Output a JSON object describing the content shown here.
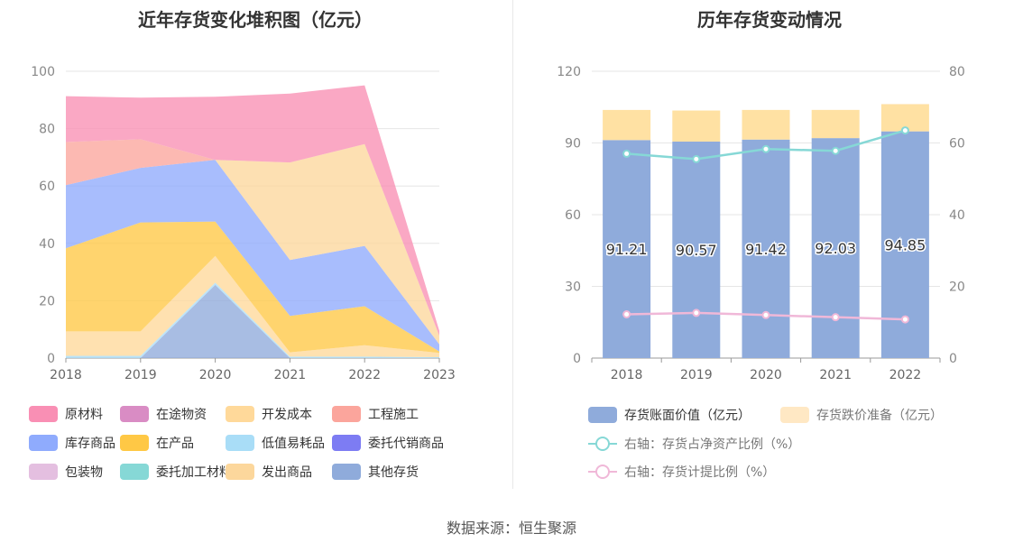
{
  "source": "数据来源：恒生聚源",
  "colors": {
    "原材料": "#f98fb4",
    "在途物资": "#d98cc4",
    "开发成本": "#ffd99a",
    "工程施工": "#fba59c",
    "库存商品": "#8fabfd",
    "在产品": "#ffc845",
    "低值易耗品": "#a9ddf7",
    "委托代销商品": "#7d7cf3",
    "包装物": "#e4bfe0",
    "委托加工材料": "#86d8d6",
    "发出商品": "#fcd79c",
    "其他存货": "#8fabdb",
    "bar_value": "#8fabdb",
    "bar_reserve": "#ffe1a3",
    "line_ratio": "#86d8d6",
    "line_provision": "#f0b8d8"
  },
  "chart_data": [
    {
      "type": "area",
      "title": "近年存货变化堆积图（亿元）",
      "x": [
        "2018",
        "2019",
        "2020",
        "2021",
        "2022",
        "2023"
      ],
      "ylim": [
        0,
        100
      ],
      "yticks": [
        0,
        20,
        40,
        60,
        80,
        100
      ],
      "grid": true,
      "legend_position": "bottom",
      "series": [
        {
          "name": "其他存货",
          "values": [
            0,
            0,
            25.5,
            0,
            0,
            0
          ]
        },
        {
          "name": "发出商品",
          "values": [
            0,
            0,
            0,
            0,
            0,
            0
          ]
        },
        {
          "name": "委托加工材料",
          "values": [
            0,
            0,
            0,
            0,
            0,
            0
          ]
        },
        {
          "name": "包装物",
          "values": [
            0,
            0,
            0,
            0,
            0,
            0
          ]
        },
        {
          "name": "委托代销商品",
          "values": [
            0,
            0,
            0,
            0,
            0,
            0
          ]
        },
        {
          "name": "低值易耗品",
          "values": [
            0.8,
            0.8,
            0.8,
            0.5,
            0.5,
            0.3
          ]
        },
        {
          "name": "开发成本",
          "values": [
            8.5,
            8.5,
            9.3,
            1.5,
            4.0,
            1.5
          ]
        },
        {
          "name": "在产品",
          "values": [
            29.0,
            38.0,
            12.0,
            12.7,
            13.6,
            0.5
          ]
        },
        {
          "name": "库存商品",
          "values": [
            22.0,
            19.0,
            21.5,
            19.5,
            21.0,
            2.5
          ]
        },
        {
          "name": "工程施工",
          "values": [
            15.0,
            10.0,
            0,
            0,
            0,
            0
          ]
        },
        {
          "name": "在途物资",
          "values": [
            0,
            0,
            0,
            0,
            0,
            0
          ]
        },
        {
          "name": "发出商品_top",
          "label": "发出商品",
          "values": [
            0,
            0,
            0,
            34.0,
            35.5,
            3.0
          ]
        },
        {
          "name": "原材料",
          "values": [
            16.0,
            14.5,
            22.0,
            24.0,
            20.5,
            1.7
          ]
        }
      ],
      "legend": [
        "原材料",
        "在途物资",
        "开发成本",
        "工程施工",
        "库存商品",
        "在产品",
        "低值易耗品",
        "委托代销商品",
        "包装物",
        "委托加工材料",
        "发出商品",
        "其他存货"
      ]
    },
    {
      "type": "bar",
      "title": "历年存货变动情况",
      "categories": [
        "2018",
        "2019",
        "2020",
        "2021",
        "2022"
      ],
      "ylim": [
        0,
        120
      ],
      "yticks": [
        0,
        30,
        60,
        90,
        120
      ],
      "y2lim": [
        0,
        80
      ],
      "y2ticks": [
        0,
        20,
        40,
        60,
        80
      ],
      "legend_position": "bottom",
      "series": [
        {
          "name": "存货账面价值（亿元）",
          "values": [
            91.21,
            90.57,
            91.42,
            92.03,
            94.85
          ],
          "labels": [
            "91.21",
            "90.57",
            "91.42",
            "92.03",
            "94.85"
          ]
        },
        {
          "name": "存货跌价准备（亿元）",
          "values": [
            12.6,
            13.0,
            12.4,
            11.8,
            11.4
          ]
        },
        {
          "name": "右轴：存货占净资产比例（%）",
          "axis": "right",
          "values": [
            57.0,
            55.5,
            58.3,
            57.8,
            63.5
          ]
        },
        {
          "name": "右轴：存货计提比例（%）",
          "axis": "right",
          "values": [
            12.2,
            12.6,
            12.0,
            11.4,
            10.8
          ]
        }
      ]
    }
  ]
}
